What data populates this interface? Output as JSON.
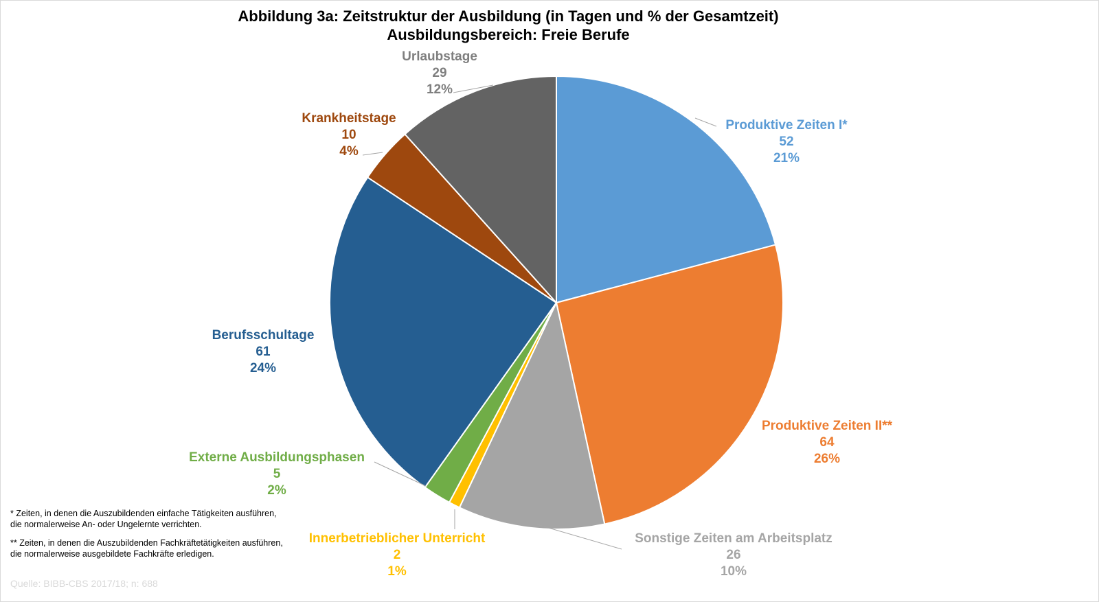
{
  "chart_data": {
    "type": "pie",
    "title": "Abbildung 3a: Zeitstruktur der Ausbildung (in Tagen und % der Gesamtzeit)",
    "subtitle": "Ausbildungsbereich: Freie Berufe",
    "slices": [
      {
        "label": "Produktive  Zeiten I*",
        "value": 52,
        "value_label": "52",
        "percent": "21%",
        "color": "#5B9BD5",
        "text_color": "#5B9BD5"
      },
      {
        "label": "Produktive  Zeiten II**",
        "value": 64,
        "value_label": "64",
        "percent": "26%",
        "color": "#ED7D31",
        "text_color": "#ED7D31"
      },
      {
        "label": "Sonstige Zeiten am Arbeitsplatz",
        "value": 26,
        "value_label": "26",
        "percent": "10%",
        "color": "#A5A5A5",
        "text_color": "#A5A5A5"
      },
      {
        "label": "Innerbetrieblicher  Unterricht",
        "value": 2,
        "value_label": "2",
        "percent": "1%",
        "color": "#FFC000",
        "text_color": "#FFC000"
      },
      {
        "label": "Externe Ausbildungsphasen",
        "value": 5,
        "value_label": "5",
        "percent": "2%",
        "color": "#70AD47",
        "text_color": "#70AD47"
      },
      {
        "label": "Berufsschultage",
        "value": 61,
        "value_label": "61",
        "percent": "24%",
        "color": "#255E91",
        "text_color": "#255E91"
      },
      {
        "label": "Krankheitstage",
        "value": 10,
        "value_label": "10",
        "percent": "4%",
        "color": "#9E480E",
        "text_color": "#9E480E"
      },
      {
        "label": "Urlaubstage",
        "value": 29,
        "value_label": "29",
        "percent": "12%",
        "color": "#636363",
        "text_color": "#7F7F7F"
      }
    ],
    "start_angle": "12 o'clock",
    "direction": "clockwise"
  },
  "footnotes": {
    "note1_line1": "* Zeiten, in denen die Auszubildenden  einfache Tätigkeiten ausführen,",
    "note1_line2": "die normalerweise An- oder Ungelernte  verrichten.",
    "note2_line1": "** Zeiten, in denen die Auszubildenden  Fachkräftetätigkeiten ausführen,",
    "note2_line2": "die normalerweise ausgebildete Fachkräfte erledigen.",
    "source": "Quelle: BIBB-CBS 2017/18; n: 688"
  }
}
